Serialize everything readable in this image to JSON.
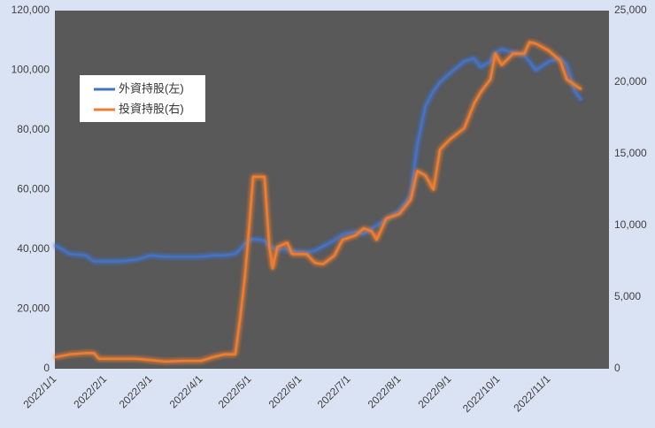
{
  "chart_data": {
    "type": "line",
    "x": [
      "2022/1/1",
      "2022/1/10",
      "2022/1/20",
      "2022/1/25",
      "2022/1/28",
      "2022/2/10",
      "2022/2/20",
      "2022/3/1",
      "2022/3/10",
      "2022/3/20",
      "2022/4/1",
      "2022/4/8",
      "2022/4/15",
      "2022/4/22",
      "2022/4/25",
      "2022/4/28",
      "2022/5/1",
      "2022/5/3",
      "2022/5/10",
      "2022/5/13",
      "2022/5/15",
      "2022/5/18",
      "2022/5/24",
      "2022/5/27",
      "2022/6/5",
      "2022/6/10",
      "2022/6/15",
      "2022/6/22",
      "2022/6/27",
      "2022/7/5",
      "2022/7/10",
      "2022/7/15",
      "2022/7/18",
      "2022/7/24",
      "2022/8/1",
      "2022/8/8",
      "2022/8/12",
      "2022/8/17",
      "2022/8/22",
      "2022/8/26",
      "2022/9/1",
      "2022/9/10",
      "2022/9/16",
      "2022/9/20",
      "2022/9/26",
      "2022/9/29",
      "2022/10/3",
      "2022/10/10",
      "2022/10/17",
      "2022/10/20",
      "2022/10/24",
      "2022/11/1",
      "2022/11/8",
      "2022/11/12",
      "2022/11/17",
      "2022/11/21"
    ],
    "series": [
      {
        "name": "外資持股(左)",
        "color": "#4472c4",
        "axis": "y",
        "values": [
          41500,
          38500,
          38000,
          36000,
          36000,
          36000,
          36500,
          38000,
          37500,
          37500,
          37500,
          38000,
          38000,
          38500,
          40000,
          42000,
          43000,
          43500,
          43000,
          41000,
          40500,
          40000,
          40000,
          39500,
          39000,
          39500,
          41000,
          43000,
          45000,
          46000,
          45000,
          47000,
          48000,
          50000,
          53000,
          58000,
          75000,
          88000,
          93000,
          96000,
          99000,
          103000,
          104000,
          101000,
          103000,
          106000,
          107000,
          106000,
          105000,
          103000,
          100000,
          103000,
          104000,
          102000,
          93000,
          90000
        ]
      },
      {
        "name": "投資持股(右)",
        "color": "#ed7d31",
        "axis": "y2",
        "values": [
          800,
          1000,
          1100,
          1100,
          700,
          700,
          700,
          600,
          500,
          550,
          550,
          800,
          1000,
          1000,
          3500,
          6500,
          10500,
          13400,
          13400,
          8500,
          7000,
          8500,
          8800,
          8000,
          8000,
          7400,
          7300,
          7900,
          9000,
          9300,
          9800,
          9600,
          9000,
          10500,
          10800,
          11800,
          13800,
          13500,
          12500,
          15300,
          16000,
          16800,
          18500,
          19300,
          20200,
          22000,
          21200,
          22000,
          22000,
          22800,
          22700,
          22200,
          21500,
          20200,
          19800,
          19500
        ]
      }
    ],
    "xlim": [
      "2022/1/1",
      "2022/12/8"
    ],
    "xticks": [
      "2022/1/1",
      "2022/2/1",
      "2022/3/1",
      "2022/4/1",
      "2022/5/1",
      "2022/6/1",
      "2022/7/1",
      "2022/8/1",
      "2022/9/1",
      "2022/10/1",
      "2022/11/1"
    ],
    "ylim": [
      0,
      120000
    ],
    "yticks": [
      0,
      {
        "value": 20000,
        "label": "20,000"
      },
      {
        "value": 40000,
        "label": "40,000"
      },
      {
        "value": 60000,
        "label": "60,000"
      },
      {
        "value": 80000,
        "label": "80,000"
      },
      {
        "value": 100000,
        "label": "100,000"
      },
      {
        "value": 120000,
        "label": "120,000"
      }
    ],
    "y2lim": [
      0,
      25000
    ],
    "y2ticks": [
      0,
      {
        "value": 5000,
        "label": "5,000"
      },
      {
        "value": 10000,
        "label": "10,000"
      },
      {
        "value": 15000,
        "label": "15,000"
      },
      {
        "value": 20000,
        "label": "20,000"
      },
      {
        "value": 25000,
        "label": "25,000"
      }
    ],
    "plot_background": "#595959",
    "legend": "upper left"
  }
}
